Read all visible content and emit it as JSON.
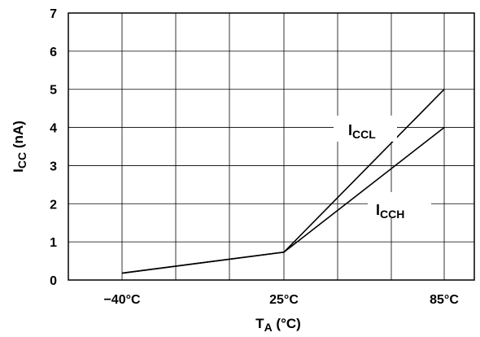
{
  "chart_data": {
    "type": "line",
    "x_categories": [
      "−40°C",
      "25°C",
      "85°C"
    ],
    "x_values": [
      -40,
      25,
      85
    ],
    "ylim": [
      0,
      7
    ],
    "y_ticks": [
      "0",
      "1",
      "2",
      "3",
      "4",
      "5",
      "6",
      "7"
    ],
    "grid": true,
    "xlabel": {
      "main": "T",
      "sub": "A",
      "suffix": " (°C)"
    },
    "ylabel": {
      "main": "I",
      "sub": "CC",
      "suffix": " (nA)"
    },
    "series": [
      {
        "name": "I",
        "name_sub": "CCL",
        "values": [
          0.18,
          0.73,
          5.0
        ]
      },
      {
        "name": "I",
        "name_sub": "CCH",
        "values": [
          0.18,
          0.73,
          4.0
        ]
      }
    ]
  }
}
